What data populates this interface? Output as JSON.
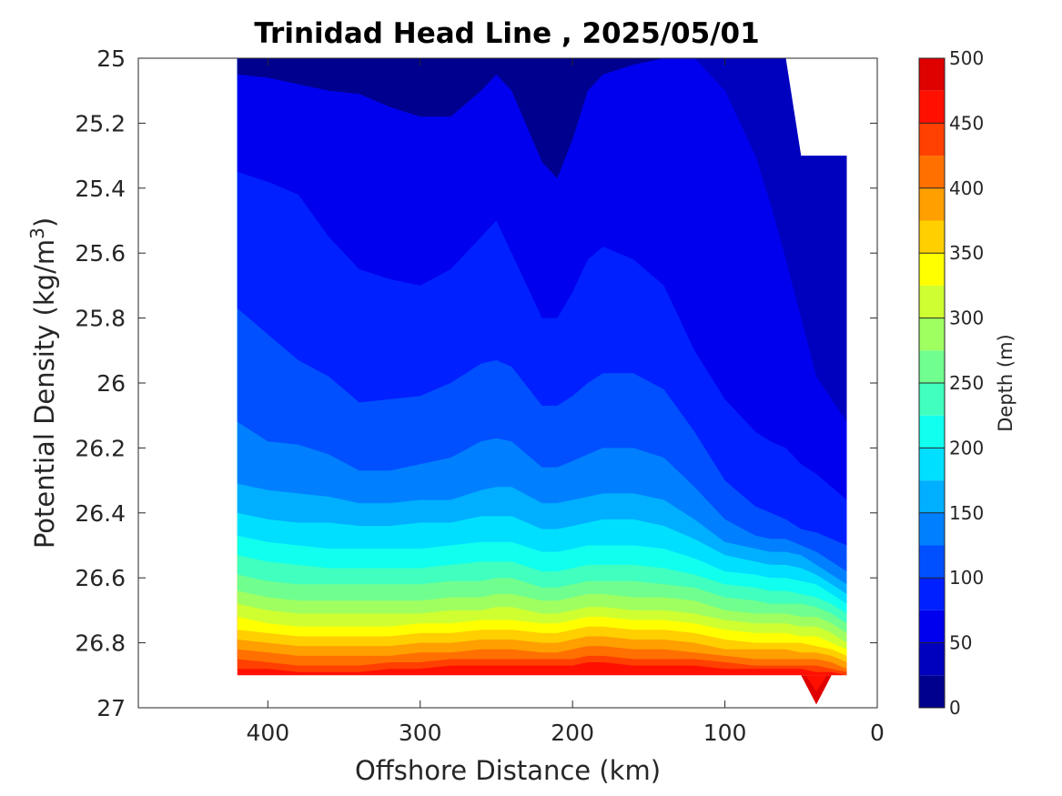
{
  "chart_data": {
    "type": "contour",
    "title": "Trinidad Head Line , 2025/05/01",
    "xlabel": "Offshore Distance (km)",
    "ylabel_main": "Potential Density (kg/m",
    "ylabel_sup": "3",
    "ylabel_close": ")",
    "x_axis": {
      "lim": [
        0,
        485
      ],
      "reversed": true,
      "ticks": [
        400,
        300,
        200,
        100,
        0
      ],
      "tick_labels": [
        "400",
        "300",
        "200",
        "100",
        "0"
      ]
    },
    "y_axis": {
      "lim": [
        25,
        27
      ],
      "reversed": true,
      "ticks": [
        25,
        25.2,
        25.4,
        25.6,
        25.8,
        26,
        26.2,
        26.4,
        26.6,
        26.8,
        27
      ],
      "tick_labels": [
        "25",
        "25.2",
        "25.4",
        "25.6",
        "25.8",
        "26",
        "26.2",
        "26.4",
        "26.6",
        "26.8",
        "27"
      ]
    },
    "colorbar": {
      "label": "Depth (m)",
      "range": [
        0,
        500
      ],
      "step": 25,
      "ticks": [
        0,
        50,
        100,
        150,
        200,
        250,
        300,
        350,
        400,
        450,
        500
      ],
      "tick_labels": [
        "0",
        "50",
        "100",
        "150",
        "200",
        "250",
        "300",
        "350",
        "400",
        "450",
        "500"
      ],
      "colors": [
        "#00008f",
        "#0000bf",
        "#0000ef",
        "#0020ff",
        "#0050ff",
        "#0080ff",
        "#00afff",
        "#00dfff",
        "#10ffef",
        "#40ffbf",
        "#70ff8f",
        "#9fff60",
        "#cfff30",
        "#ffff00",
        "#ffcf00",
        "#ff9f00",
        "#ff7000",
        "#ff4000",
        "#ff1000",
        "#df0000",
        "#af0000"
      ]
    },
    "data_extent": {
      "x": [
        20,
        420
      ],
      "y": [
        25,
        26.9
      ]
    },
    "distance_km": [
      420,
      400,
      380,
      360,
      340,
      320,
      300,
      280,
      260,
      250,
      240,
      220,
      210,
      200,
      190,
      180,
      160,
      140,
      120,
      100,
      80,
      70,
      60,
      50,
      40,
      30,
      20
    ],
    "contours": [
      {
        "depth_m": 25,
        "density": [
          25.05,
          25.06,
          25.08,
          25.1,
          25.11,
          25.15,
          25.18,
          25.18,
          25.1,
          25.05,
          25.1,
          25.32,
          25.37,
          25.25,
          25.1,
          25.05,
          25.02,
          25.0,
          25.0,
          25.0,
          25.0,
          25.0,
          25.0,
          25.0,
          25.0,
          25.0,
          25.0
        ]
      },
      {
        "depth_m": 50,
        "density": [
          25.0,
          25.0,
          25.0,
          25.0,
          25.0,
          25.0,
          25.0,
          25.0,
          25.0,
          25.0,
          25.0,
          25.0,
          25.0,
          25.0,
          25.0,
          25.0,
          25.0,
          25.0,
          25.0,
          25.1,
          25.3,
          25.45,
          25.62,
          25.8,
          25.98,
          26.05,
          26.12
        ]
      },
      {
        "depth_m": 75,
        "density": [
          25.35,
          25.38,
          25.42,
          25.55,
          25.65,
          25.68,
          25.7,
          25.65,
          25.55,
          25.5,
          25.6,
          25.8,
          25.8,
          25.72,
          25.62,
          25.58,
          25.62,
          25.7,
          25.9,
          26.05,
          26.15,
          26.18,
          26.2,
          26.25,
          26.28,
          26.32,
          26.36
        ]
      },
      {
        "depth_m": 100,
        "density": [
          25.77,
          25.85,
          25.93,
          25.98,
          26.06,
          26.05,
          26.04,
          26.0,
          25.94,
          25.93,
          25.95,
          26.07,
          26.07,
          26.04,
          26.0,
          25.97,
          25.97,
          26.02,
          26.15,
          26.3,
          26.38,
          26.4,
          26.42,
          26.45,
          26.46,
          26.48,
          26.5
        ]
      },
      {
        "depth_m": 125,
        "density": [
          26.12,
          26.18,
          26.19,
          26.22,
          26.27,
          26.27,
          26.25,
          26.23,
          26.18,
          26.17,
          26.18,
          26.26,
          26.26,
          26.24,
          26.22,
          26.2,
          26.2,
          26.23,
          26.32,
          26.42,
          26.47,
          26.48,
          26.48,
          26.5,
          26.52,
          26.55,
          26.58
        ]
      },
      {
        "depth_m": 150,
        "density": [
          26.31,
          26.33,
          26.34,
          26.35,
          26.37,
          26.37,
          26.36,
          26.36,
          26.33,
          26.32,
          26.32,
          26.37,
          26.37,
          26.36,
          26.35,
          26.34,
          26.34,
          26.36,
          26.42,
          26.49,
          26.51,
          26.52,
          26.52,
          26.53,
          26.56,
          26.59,
          26.62
        ]
      },
      {
        "depth_m": 175,
        "density": [
          26.4,
          26.42,
          26.43,
          26.43,
          26.44,
          26.44,
          26.43,
          26.43,
          26.41,
          26.41,
          26.41,
          26.45,
          26.45,
          26.44,
          26.43,
          26.42,
          26.42,
          26.44,
          26.48,
          26.53,
          26.55,
          26.56,
          26.56,
          26.57,
          26.59,
          26.62,
          26.65
        ]
      },
      {
        "depth_m": 200,
        "density": [
          26.47,
          26.49,
          26.5,
          26.51,
          26.51,
          26.51,
          26.51,
          26.5,
          26.49,
          26.49,
          26.49,
          26.52,
          26.52,
          26.51,
          26.5,
          26.5,
          26.5,
          26.51,
          26.54,
          26.58,
          26.59,
          26.6,
          26.6,
          26.61,
          26.62,
          26.65,
          26.68
        ]
      },
      {
        "depth_m": 225,
        "density": [
          26.53,
          26.55,
          26.56,
          26.57,
          26.57,
          26.57,
          26.57,
          26.56,
          26.55,
          26.55,
          26.55,
          26.58,
          26.58,
          26.57,
          26.56,
          26.56,
          26.56,
          26.57,
          26.59,
          26.62,
          26.63,
          26.64,
          26.64,
          26.65,
          26.66,
          26.68,
          26.71
        ]
      },
      {
        "depth_m": 250,
        "density": [
          26.59,
          26.61,
          26.62,
          26.62,
          26.62,
          26.62,
          26.62,
          26.61,
          26.61,
          26.6,
          26.6,
          26.63,
          26.63,
          26.62,
          26.61,
          26.61,
          26.61,
          26.62,
          26.63,
          26.66,
          26.67,
          26.68,
          26.68,
          26.68,
          26.69,
          26.71,
          26.74
        ]
      },
      {
        "depth_m": 275,
        "density": [
          26.64,
          26.66,
          26.67,
          26.67,
          26.67,
          26.67,
          26.67,
          26.66,
          26.66,
          26.65,
          26.65,
          26.67,
          26.67,
          26.66,
          26.65,
          26.65,
          26.66,
          26.66,
          26.67,
          26.7,
          26.71,
          26.71,
          26.71,
          26.72,
          26.72,
          26.74,
          26.77
        ]
      },
      {
        "depth_m": 300,
        "density": [
          26.68,
          26.7,
          26.71,
          26.71,
          26.71,
          26.71,
          26.71,
          26.7,
          26.7,
          26.69,
          26.69,
          26.71,
          26.71,
          26.7,
          26.69,
          26.69,
          26.7,
          26.7,
          26.71,
          26.73,
          26.74,
          26.74,
          26.74,
          26.75,
          26.75,
          26.77,
          26.8
        ]
      },
      {
        "depth_m": 325,
        "density": [
          26.72,
          26.74,
          26.75,
          26.75,
          26.75,
          26.75,
          26.74,
          26.74,
          26.73,
          26.73,
          26.73,
          26.74,
          26.74,
          26.73,
          26.72,
          26.72,
          26.73,
          26.73,
          26.74,
          26.76,
          26.77,
          26.77,
          26.77,
          26.78,
          26.78,
          26.8,
          26.82
        ]
      },
      {
        "depth_m": 350,
        "density": [
          26.76,
          26.77,
          26.78,
          26.78,
          26.78,
          26.78,
          26.77,
          26.77,
          26.76,
          26.76,
          26.76,
          26.77,
          26.77,
          26.76,
          26.75,
          26.75,
          26.76,
          26.76,
          26.77,
          26.79,
          26.8,
          26.8,
          26.8,
          26.8,
          26.81,
          26.82,
          26.84
        ]
      },
      {
        "depth_m": 375,
        "density": [
          26.79,
          26.8,
          26.81,
          26.81,
          26.81,
          26.81,
          26.8,
          26.8,
          26.79,
          26.79,
          26.79,
          26.8,
          26.8,
          26.79,
          26.78,
          26.78,
          26.79,
          26.79,
          26.8,
          26.82,
          26.82,
          26.82,
          26.82,
          26.83,
          26.83,
          26.84,
          26.86
        ]
      },
      {
        "depth_m": 400,
        "density": [
          26.82,
          26.83,
          26.84,
          26.84,
          26.84,
          26.84,
          26.83,
          26.83,
          26.82,
          26.82,
          26.82,
          26.83,
          26.83,
          26.82,
          26.81,
          26.81,
          26.82,
          26.82,
          26.83,
          26.84,
          26.85,
          26.85,
          26.85,
          26.85,
          26.85,
          26.86,
          26.88
        ]
      },
      {
        "depth_m": 425,
        "density": [
          26.85,
          26.86,
          26.87,
          26.87,
          26.87,
          26.86,
          26.86,
          26.85,
          26.85,
          26.85,
          26.85,
          26.85,
          26.85,
          26.85,
          26.84,
          26.84,
          26.85,
          26.85,
          26.85,
          26.86,
          26.87,
          26.87,
          26.87,
          26.87,
          26.87,
          26.88,
          26.89
        ]
      },
      {
        "depth_m": 450,
        "density": [
          26.88,
          26.88,
          26.89,
          26.89,
          26.89,
          26.88,
          26.88,
          26.87,
          26.87,
          26.87,
          26.87,
          26.87,
          26.87,
          26.87,
          26.86,
          26.86,
          26.87,
          26.87,
          26.87,
          26.88,
          26.88,
          26.88,
          26.88,
          26.88,
          26.89,
          26.89,
          26.9
        ]
      }
    ],
    "deep_notch": {
      "x": [
        50,
        40,
        30
      ],
      "y_top": 26.9,
      "y_tip": 26.99
    },
    "masked_corner": [
      [
        20,
        25.3
      ],
      [
        50,
        25.3
      ],
      [
        60,
        25.0
      ],
      [
        20,
        25.0
      ]
    ]
  }
}
